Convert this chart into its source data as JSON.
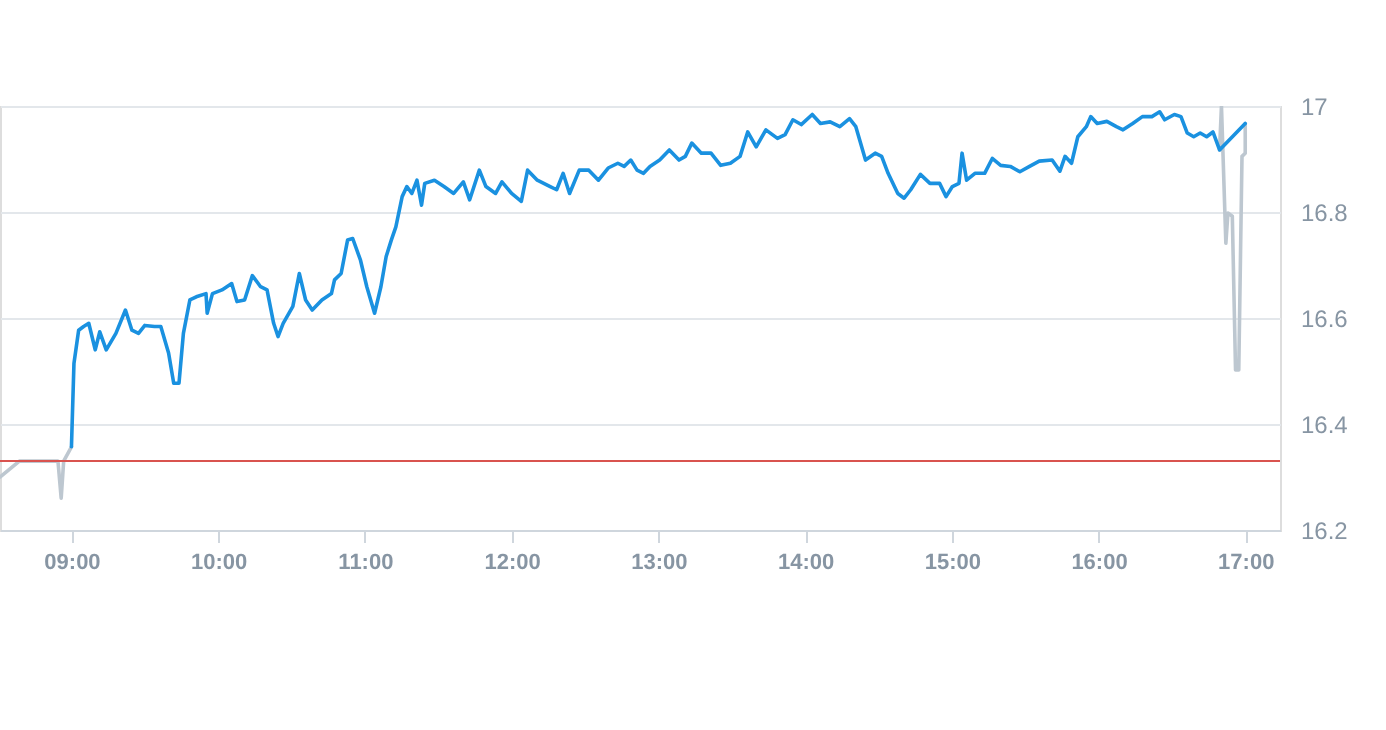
{
  "chart_data": {
    "type": "line",
    "xlim": [
      8.513,
      17.237
    ],
    "ylim": [
      16.2,
      17
    ],
    "xticks": [
      {
        "value": 9,
        "label": "09:00"
      },
      {
        "value": 10,
        "label": "10:00"
      },
      {
        "value": 11,
        "label": "11:00"
      },
      {
        "value": 12,
        "label": "12:00"
      },
      {
        "value": 13,
        "label": "13:00"
      },
      {
        "value": 14,
        "label": "14:00"
      },
      {
        "value": 15,
        "label": "15:00"
      },
      {
        "value": 16,
        "label": "16:00"
      },
      {
        "value": 17,
        "label": "17:00"
      }
    ],
    "yticks": [
      16.2,
      16.4,
      16.6,
      16.8,
      {
        "value": 17,
        "label": "17"
      }
    ],
    "grid": "y",
    "line_style": "solid",
    "marker": "none",
    "ref_lines": [
      {
        "axis": "y",
        "value": 16.33,
        "color": "#d9534f"
      }
    ],
    "series": [
      {
        "color": "#bdc7d0",
        "x": [
          8.513,
          8.645,
          8.908,
          8.93,
          8.947,
          9.0
        ],
        "values": [
          16.3,
          16.33,
          16.33,
          16.26,
          16.33,
          16.357
        ]
      },
      {
        "color": "#bdc7d0",
        "x": [
          16.825,
          16.838,
          16.868,
          16.882,
          16.912,
          16.934,
          16.956,
          16.978,
          17.0,
          17.0
        ],
        "values": [
          16.917,
          17.0,
          16.741,
          16.798,
          16.792,
          16.502,
          16.502,
          16.905,
          16.911,
          16.967
        ]
      },
      {
        "color": "#1a91e0",
        "x": [
          9.0,
          9.017,
          9.049,
          9.083,
          9.118,
          9.162,
          9.193,
          9.237,
          9.303,
          9.368,
          9.412,
          9.457,
          9.5,
          9.566,
          9.609,
          9.662,
          9.697,
          9.733,
          9.763,
          9.807,
          9.851,
          9.917,
          9.925,
          9.961,
          10.026,
          10.092,
          10.128,
          10.18,
          10.233,
          10.289,
          10.333,
          10.378,
          10.408,
          10.443,
          10.509,
          10.553,
          10.596,
          10.641,
          10.707,
          10.772,
          10.793,
          10.838,
          10.882,
          10.917,
          10.97,
          11.013,
          11.066,
          11.109,
          11.145,
          11.18,
          11.211,
          11.254,
          11.286,
          11.32,
          11.355,
          11.386,
          11.408,
          11.474,
          11.539,
          11.605,
          11.671,
          11.714,
          11.78,
          11.825,
          11.891,
          11.934,
          12.0,
          12.066,
          12.109,
          12.175,
          12.263,
          12.307,
          12.351,
          12.395,
          12.461,
          12.526,
          12.592,
          12.658,
          12.724,
          12.767,
          12.812,
          12.855,
          12.899,
          12.943,
          13.009,
          13.075,
          13.141,
          13.184,
          13.228,
          13.293,
          13.359,
          13.425,
          13.491,
          13.557,
          13.609,
          13.667,
          13.733,
          13.812,
          13.864,
          13.917,
          13.974,
          14.049,
          14.105,
          14.171,
          14.237,
          14.303,
          14.346,
          14.412,
          14.478,
          14.522,
          14.566,
          14.632,
          14.675,
          14.72,
          14.786,
          14.851,
          14.917,
          14.961,
          15.004,
          15.049,
          15.07,
          15.101,
          15.158,
          15.224,
          15.276,
          15.333,
          15.399,
          15.464,
          15.53,
          15.596,
          15.684,
          15.737,
          15.772,
          15.816,
          15.859,
          15.917,
          15.947,
          15.991,
          16.057,
          16.122,
          16.167,
          16.233,
          16.299,
          16.364,
          16.417,
          16.451,
          16.517,
          16.562,
          16.605,
          16.649,
          16.693,
          16.737,
          16.78,
          16.825,
          17.0
        ],
        "values": [
          16.357,
          16.514,
          16.577,
          16.584,
          16.59,
          16.54,
          16.574,
          16.54,
          16.571,
          16.615,
          16.577,
          16.571,
          16.586,
          16.584,
          16.584,
          16.534,
          16.477,
          16.477,
          16.571,
          16.634,
          16.64,
          16.646,
          16.609,
          16.646,
          16.653,
          16.665,
          16.631,
          16.634,
          16.68,
          16.659,
          16.653,
          16.59,
          16.565,
          16.59,
          16.622,
          16.684,
          16.634,
          16.615,
          16.634,
          16.646,
          16.672,
          16.684,
          16.747,
          16.75,
          16.709,
          16.659,
          16.609,
          16.659,
          16.716,
          16.747,
          16.772,
          16.829,
          16.848,
          16.835,
          16.86,
          16.813,
          16.854,
          16.86,
          16.848,
          16.835,
          16.857,
          16.823,
          16.879,
          16.848,
          16.835,
          16.857,
          16.835,
          16.82,
          16.879,
          16.86,
          16.848,
          16.842,
          16.873,
          16.835,
          16.879,
          16.879,
          16.86,
          16.883,
          16.892,
          16.886,
          16.898,
          16.879,
          16.873,
          16.886,
          16.898,
          16.917,
          16.898,
          16.905,
          16.93,
          16.911,
          16.911,
          16.888,
          16.892,
          16.905,
          16.951,
          16.923,
          16.955,
          16.939,
          16.946,
          16.974,
          16.965,
          16.984,
          16.967,
          16.97,
          16.961,
          16.976,
          16.961,
          16.898,
          16.911,
          16.905,
          16.873,
          16.835,
          16.826,
          16.842,
          16.871,
          16.854,
          16.854,
          16.829,
          16.848,
          16.854,
          16.911,
          16.86,
          16.873,
          16.873,
          16.901,
          16.888,
          16.886,
          16.876,
          16.886,
          16.896,
          16.898,
          16.877,
          16.905,
          16.892,
          16.942,
          16.961,
          16.98,
          16.967,
          16.971,
          16.961,
          16.955,
          16.967,
          16.98,
          16.98,
          16.989,
          16.974,
          16.984,
          16.98,
          16.949,
          16.942,
          16.949,
          16.942,
          16.951,
          16.917,
          16.967
        ]
      }
    ]
  }
}
